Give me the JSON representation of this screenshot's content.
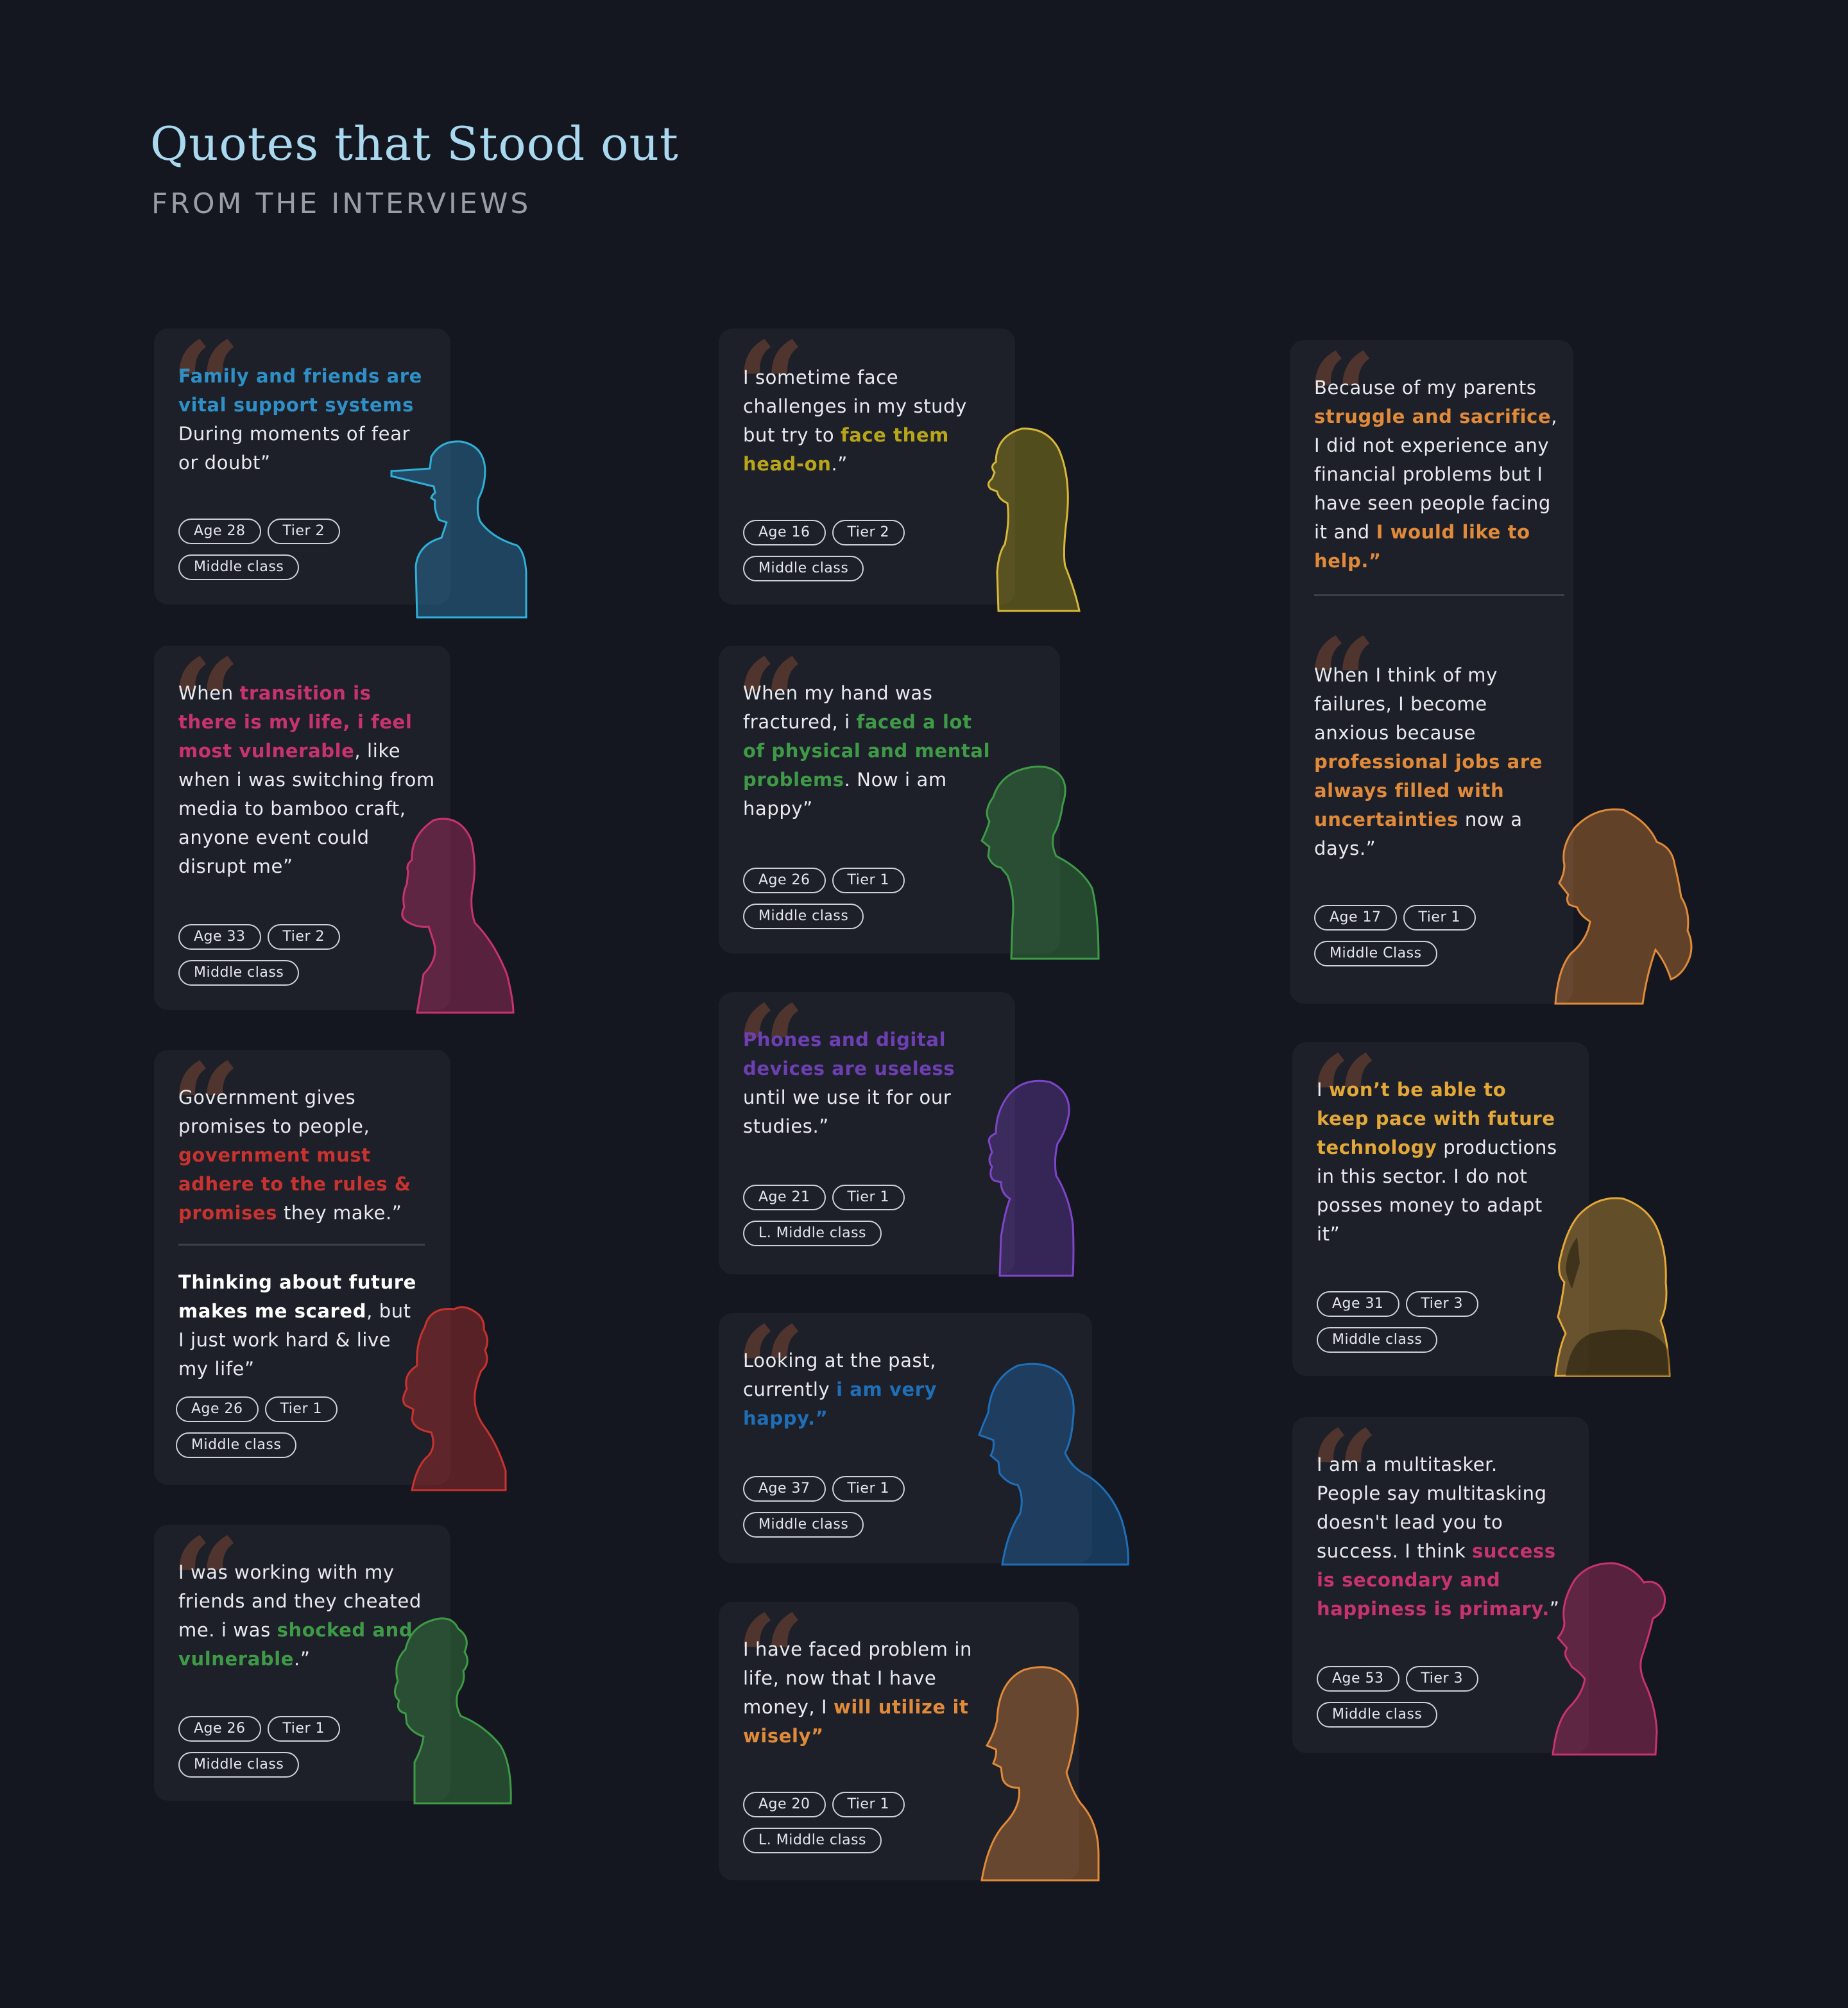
{
  "header": {
    "title": "Quotes that Stood out",
    "subtitle": "FROM THE INTERVIEWS"
  },
  "colors": {
    "background": "#14171f",
    "card": "#1d2029",
    "quote_mark": "#5a3830",
    "title": "#a9d8ef"
  },
  "quotes": [
    {
      "p1": "Family and friends are vital support systems",
      "p2": "During moments of fear or doubt”",
      "accent": "#2f8fc7",
      "silhouette": "man-with-cap-silhouette",
      "tags": [
        "Age 28",
        "Tier 2",
        "Middle class"
      ]
    },
    {
      "p1": "When ",
      "p2": "transition is there is my life, i feel most vulnerable",
      "p3": ", like when i was switching from media to bamboo craft, anyone event could disrupt me”",
      "accent": "#c8336e",
      "silhouette": "bearded-man-silhouette",
      "tags": [
        "Age 33",
        "Tier 2",
        "Middle class"
      ]
    },
    {
      "p1": "Government gives promises to people, ",
      "p2": "government must adhere to the rules & promises",
      "p3": " they make.”",
      "p4": "Thinking about future makes me scared",
      "p5": ", but I just work hard & live my life”",
      "accent": "#c8322f",
      "silhouette": "curly-hair-man-silhouette",
      "tags": [
        "Age 26",
        "Tier 1",
        "Middle class"
      ]
    },
    {
      "p1": "I was working with my friends and they cheated me. i was ",
      "p2": "shocked and vulnerable",
      "p3": ".”",
      "accent": "#3f9a47",
      "silhouette": "young-man-silhouette",
      "tags": [
        "Age 26",
        "Tier 1",
        "Middle class"
      ]
    },
    {
      "p1": "I sometime face challenges in my study but try to ",
      "p2": "face them head-on",
      "p3": ".”",
      "accent": "#b8a51a",
      "silhouette": "girl-silhouette",
      "tags": [
        "Age 16",
        "Tier 2",
        "Middle class"
      ]
    },
    {
      "p1": "When my hand was fractured, i ",
      "p2": "faced a lot of physical and mental problems",
      "p3": ". Now i am happy”",
      "accent": "#3f9a47",
      "silhouette": "man-profile-silhouette",
      "tags": [
        "Age 26",
        "Tier 1",
        "Middle class"
      ]
    },
    {
      "p1": "Phones and digital devices are useless",
      "p2": " until we use it for our studies.”",
      "accent": "#6e3fb3",
      "silhouette": "woman-bun-silhouette",
      "tags": [
        "Age 21",
        "Tier 1",
        "L. Middle class"
      ]
    },
    {
      "p1": "Looking at the past, currently ",
      "p2": "i am very happy.”",
      "accent": "#1f6fb8",
      "silhouette": "older-man-silhouette",
      "tags": [
        "Age 37",
        "Tier 1",
        "Middle class"
      ]
    },
    {
      "p1": "I have faced problem in life, now that I have money, I ",
      "p2": "will utilize it wisely”",
      "accent": "#e08a3a",
      "silhouette": "bald-man-silhouette",
      "tags": [
        "Age 20",
        "Tier 1",
        "L. Middle class"
      ]
    },
    {
      "p1": "Because of my parents ",
      "p2": "struggle and sacrifice",
      "p3": ", I did not experience any financial problems but I have seen people facing it and ",
      "p4": "I would like to help.”",
      "p5": "When I think of my failures, I become anxious because ",
      "p6": "professional jobs are always filled with uncertainties",
      "p7": " now a days.”",
      "accent": "#e08a3a",
      "silhouette": "woman-ponytail-silhouette",
      "tags": [
        "Age 17",
        "Tier 1",
        "Middle Class"
      ]
    },
    {
      "p1": "I ",
      "p2": "won’t be able to keep pace with future technology",
      "p3": " productions in this sector. I do not posses money to adapt it”",
      "accent": "#e3a838",
      "silhouette": "hijab-woman-silhouette",
      "tags": [
        "Age 31",
        "Tier 3",
        "Middle class"
      ]
    },
    {
      "p1": "I am a multitasker. People say multitasking doesn't lead you to success. I think ",
      "p2": "success is secondary and happiness is primary.",
      "p3": "”",
      "accent": "#c8336e",
      "silhouette": "woman-bun-profile-silhouette",
      "tags": [
        "Age 53",
        "Tier 3",
        "Middle class"
      ]
    }
  ]
}
